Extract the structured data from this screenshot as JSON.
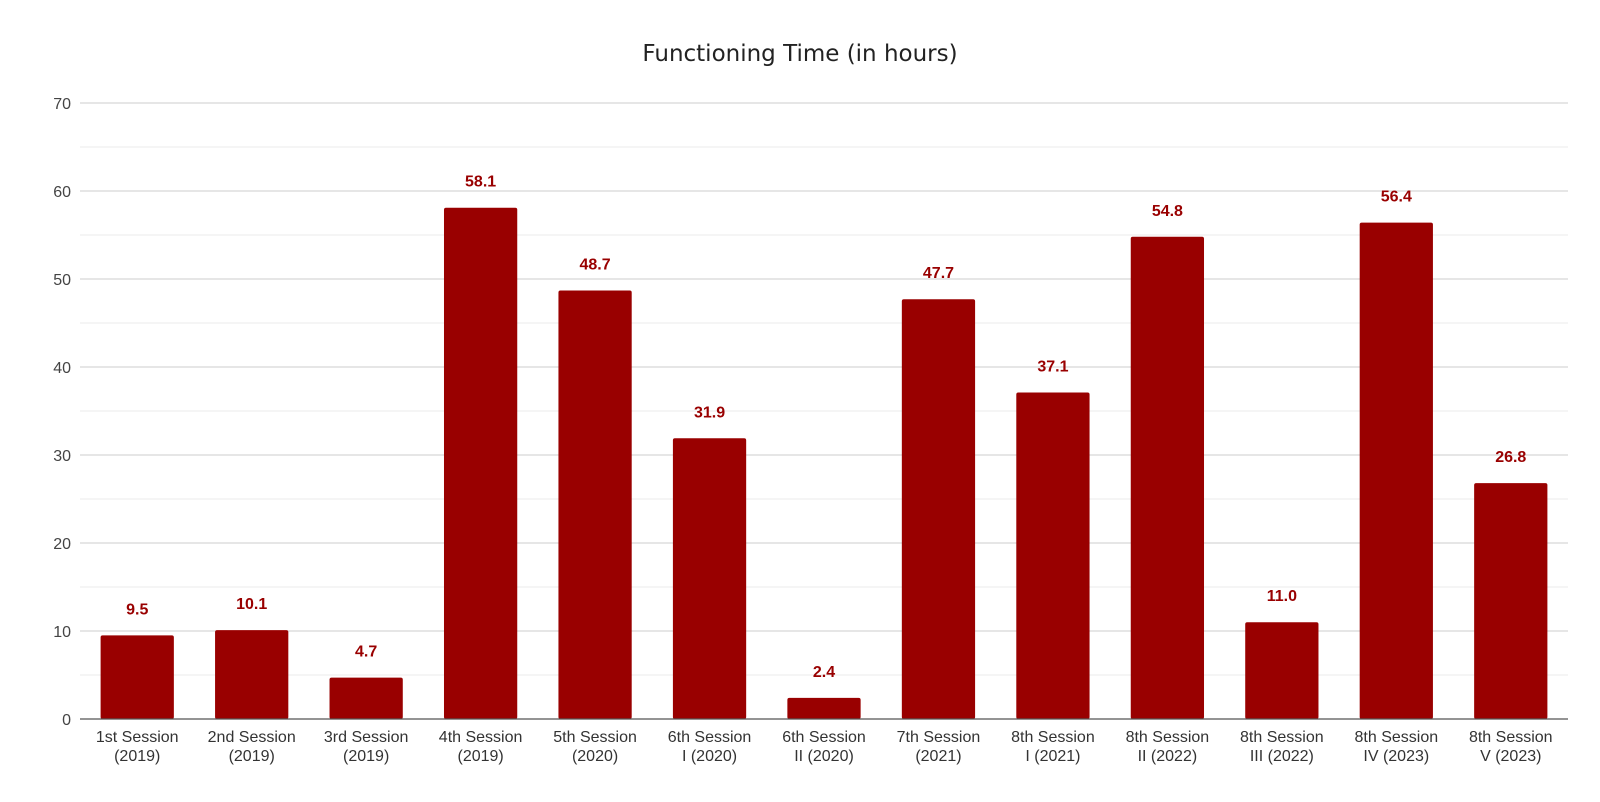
{
  "chart_data": {
    "type": "bar",
    "title": "Functioning Time (in hours)",
    "xlabel": "",
    "ylabel": "",
    "ylim": [
      0,
      70
    ],
    "yticks": [
      0,
      10,
      20,
      30,
      40,
      50,
      60,
      70
    ],
    "grid": true,
    "legend": "none",
    "bar_color": "#990000",
    "label_color": "#990000",
    "categories": [
      [
        "1st Session",
        "(2019)"
      ],
      [
        "2nd Session",
        "(2019)"
      ],
      [
        "3rd Session",
        "(2019)"
      ],
      [
        "4th Session",
        "(2019)"
      ],
      [
        "5th Session",
        "(2020)"
      ],
      [
        "6th Session",
        "I (2020)"
      ],
      [
        "6th Session",
        "II (2020)"
      ],
      [
        "7th Session",
        "(2021)"
      ],
      [
        "8th Session",
        "I (2021)"
      ],
      [
        "8th Session",
        "II (2022)"
      ],
      [
        "8th Session",
        "III (2022)"
      ],
      [
        "8th Session",
        "IV (2023)"
      ],
      [
        "8th Session",
        "V (2023)"
      ]
    ],
    "values": [
      9.5,
      10.1,
      4.7,
      58.1,
      48.7,
      31.9,
      2.4,
      47.7,
      37.1,
      54.8,
      11.0,
      56.4,
      26.8
    ],
    "data_labels": [
      "9.5",
      "10.1",
      "4.7",
      "58.1",
      "48.7",
      "31.9",
      "2.4",
      "47.7",
      "37.1",
      "54.8",
      "11.0",
      "56.4",
      "26.8"
    ]
  }
}
